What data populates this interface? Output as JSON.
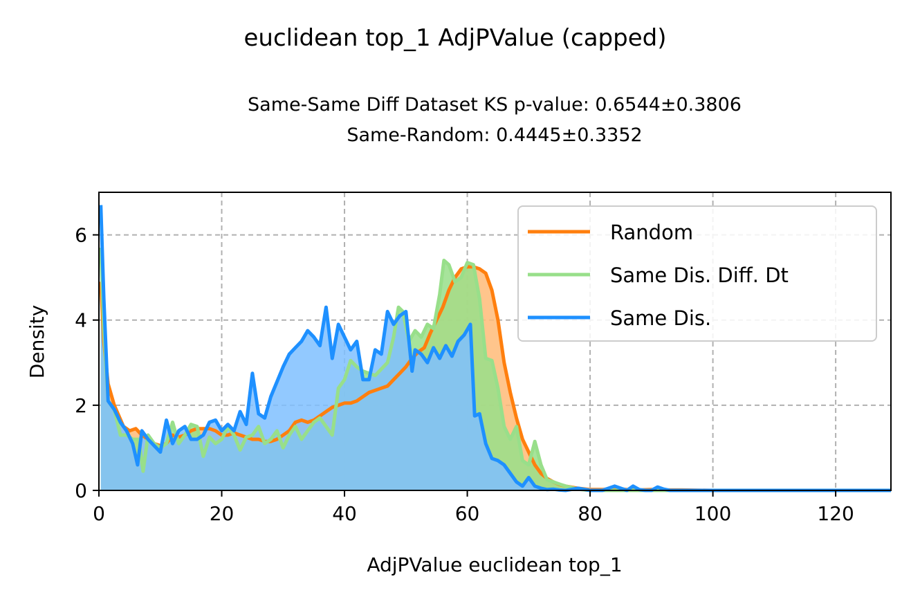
{
  "chart_data": {
    "type": "area",
    "title": "euclidean top_1 AdjPValue (capped)",
    "subtitle_line1": "Same-Same Diff Dataset  KS p-value: 0.6544±0.3806",
    "subtitle_line2": "Same-Random: 0.4445±0.3352",
    "xlabel": "AdjPValue euclidean top_1",
    "ylabel": "Density",
    "xlim": [
      0,
      129
    ],
    "ylim": [
      0,
      7
    ],
    "xticks": [
      0,
      20,
      40,
      60,
      80,
      100,
      120
    ],
    "yticks": [
      0,
      2,
      4,
      6
    ],
    "grid": true,
    "legend_position": "top-right",
    "series": [
      {
        "name": "Random",
        "color": "#ff7f0e",
        "fill": "#ffbb78",
        "x": [
          0.3,
          0.8,
          1.5,
          2.5,
          4,
          5,
          6,
          7,
          8,
          9,
          10,
          11,
          12,
          13,
          14,
          15,
          16,
          17,
          18,
          19,
          20,
          21,
          22,
          23,
          24,
          25,
          26,
          27,
          28,
          29,
          30,
          31,
          32,
          33,
          34,
          35,
          36,
          37,
          38,
          39,
          40,
          41,
          42,
          43,
          44,
          45,
          46,
          47,
          48,
          49,
          50,
          51,
          52,
          53,
          54,
          55,
          56,
          57,
          58,
          59,
          60,
          61,
          62,
          63,
          64,
          65,
          66,
          67,
          68,
          69,
          70,
          71,
          72,
          73,
          74,
          75,
          76,
          78,
          80,
          82,
          84,
          86,
          88,
          90,
          92,
          95,
          100,
          110,
          120,
          129
        ],
        "values": [
          4.9,
          3.5,
          2.5,
          2.0,
          1.5,
          1.4,
          1.45,
          1.3,
          1.2,
          1.1,
          1.05,
          1.1,
          1.3,
          1.25,
          1.3,
          1.4,
          1.45,
          1.45,
          1.45,
          1.4,
          1.3,
          1.3,
          1.35,
          1.3,
          1.25,
          1.2,
          1.2,
          1.15,
          1.15,
          1.2,
          1.3,
          1.4,
          1.6,
          1.65,
          1.6,
          1.65,
          1.75,
          1.85,
          1.95,
          2.0,
          2.05,
          2.05,
          2.1,
          2.2,
          2.3,
          2.35,
          2.4,
          2.45,
          2.6,
          2.75,
          2.9,
          3.1,
          3.25,
          3.35,
          3.7,
          4.0,
          4.3,
          4.7,
          5.0,
          5.2,
          5.25,
          5.25,
          5.2,
          5.1,
          4.7,
          4.0,
          3.0,
          2.3,
          1.7,
          1.2,
          0.9,
          0.6,
          0.4,
          0.28,
          0.2,
          0.14,
          0.1,
          0.05,
          0.02,
          0.02,
          0.05,
          0.02,
          0.01,
          0.02,
          0.01,
          0.01,
          0.0,
          0.0,
          0.0,
          0.0
        ]
      },
      {
        "name": "Same Dis. Diff. Dt",
        "color": "#98df8a",
        "fill": "#98df8a",
        "x": [
          0.3,
          0.8,
          1.5,
          2.5,
          3.5,
          4.5,
          5.5,
          6.5,
          7.2,
          8,
          9,
          10,
          11,
          12,
          13,
          14,
          15,
          16,
          17,
          18,
          19,
          20,
          21,
          22,
          23,
          24,
          25,
          26,
          27,
          28,
          29,
          30,
          31,
          32,
          33,
          34,
          35,
          36,
          37,
          38,
          39,
          40,
          41,
          42,
          43,
          44,
          45,
          46,
          47,
          48,
          48.8,
          49.5,
          50.5,
          51.5,
          52.5,
          53.5,
          54.5,
          55.5,
          56.2,
          57,
          58,
          59,
          60,
          61,
          62,
          63,
          64,
          65,
          66,
          67,
          68,
          69,
          70,
          71,
          72,
          73,
          74,
          75,
          76,
          78,
          80,
          85,
          90,
          100,
          110,
          120,
          129
        ],
        "values": [
          5.7,
          3.8,
          2.1,
          1.9,
          1.3,
          1.3,
          1.2,
          1.2,
          0.45,
          1.3,
          1.1,
          1.0,
          1.1,
          1.6,
          1.1,
          1.3,
          1.55,
          1.5,
          0.8,
          1.25,
          1.1,
          1.2,
          1.5,
          1.3,
          0.95,
          1.25,
          1.3,
          1.5,
          1.1,
          1.2,
          1.4,
          1.0,
          1.3,
          1.5,
          1.2,
          1.4,
          1.6,
          1.7,
          1.5,
          1.3,
          2.4,
          2.6,
          3.05,
          2.9,
          2.8,
          2.75,
          2.7,
          2.85,
          3.0,
          3.6,
          4.3,
          4.2,
          3.5,
          3.75,
          3.6,
          3.9,
          3.8,
          4.6,
          5.4,
          5.3,
          4.9,
          5.0,
          5.35,
          5.3,
          4.5,
          3.1,
          3.05,
          2.4,
          1.5,
          1.2,
          1.5,
          0.7,
          0.6,
          1.15,
          0.6,
          0.25,
          0.2,
          0.15,
          0.1,
          0.03,
          0.0,
          0.0,
          0.0,
          0.0,
          0.0,
          0.0,
          0.0
        ]
      },
      {
        "name": "Same Dis.",
        "color": "#1e90ff",
        "fill": "#7fbfff",
        "x": [
          0.3,
          0.8,
          1.5,
          2.5,
          3.5,
          4.5,
          5.5,
          6.3,
          7,
          8,
          9,
          10,
          11,
          12,
          13,
          14,
          15,
          16,
          17,
          18,
          19,
          20,
          21,
          22,
          23,
          24,
          25,
          26,
          27,
          28,
          29,
          30,
          31,
          32,
          33,
          34,
          35,
          36,
          37,
          38,
          39,
          40,
          41,
          42,
          43,
          44,
          45,
          46,
          47,
          48,
          49,
          50,
          51,
          51.5,
          52.5,
          53.5,
          54.5,
          55.5,
          56.5,
          57.5,
          58.5,
          59.5,
          60.5,
          61.2,
          62,
          63,
          64,
          65,
          66,
          67,
          68,
          69,
          70,
          71,
          72,
          73,
          74,
          75,
          76,
          78,
          80,
          82,
          84,
          86,
          87,
          88,
          89,
          90,
          91,
          92,
          93,
          95,
          100,
          110,
          120,
          129
        ],
        "values": [
          6.7,
          4.5,
          2.1,
          1.9,
          1.6,
          1.4,
          1.1,
          0.6,
          1.4,
          1.2,
          1.05,
          0.9,
          1.65,
          1.1,
          1.4,
          1.5,
          1.2,
          1.2,
          1.3,
          1.6,
          1.65,
          1.4,
          1.55,
          1.4,
          1.85,
          1.55,
          2.75,
          1.8,
          1.7,
          2.2,
          2.55,
          2.9,
          3.2,
          3.35,
          3.5,
          3.75,
          3.6,
          3.4,
          4.3,
          3.1,
          3.9,
          3.6,
          3.3,
          3.5,
          2.6,
          2.6,
          3.3,
          3.2,
          4.2,
          3.9,
          4.1,
          4.2,
          2.8,
          3.3,
          3.2,
          3.0,
          3.35,
          3.1,
          3.4,
          3.15,
          3.5,
          3.65,
          3.9,
          1.75,
          1.8,
          1.1,
          0.75,
          0.7,
          0.6,
          0.4,
          0.2,
          0.1,
          0.3,
          0.1,
          0.05,
          0.02,
          0.03,
          0.01,
          0.0,
          0.05,
          0.0,
          0.0,
          0.1,
          0.0,
          0.1,
          0.02,
          0.0,
          0.0,
          0.08,
          0.03,
          0.0,
          0.0,
          0.0,
          0.0,
          0.0,
          0.0
        ]
      }
    ]
  }
}
